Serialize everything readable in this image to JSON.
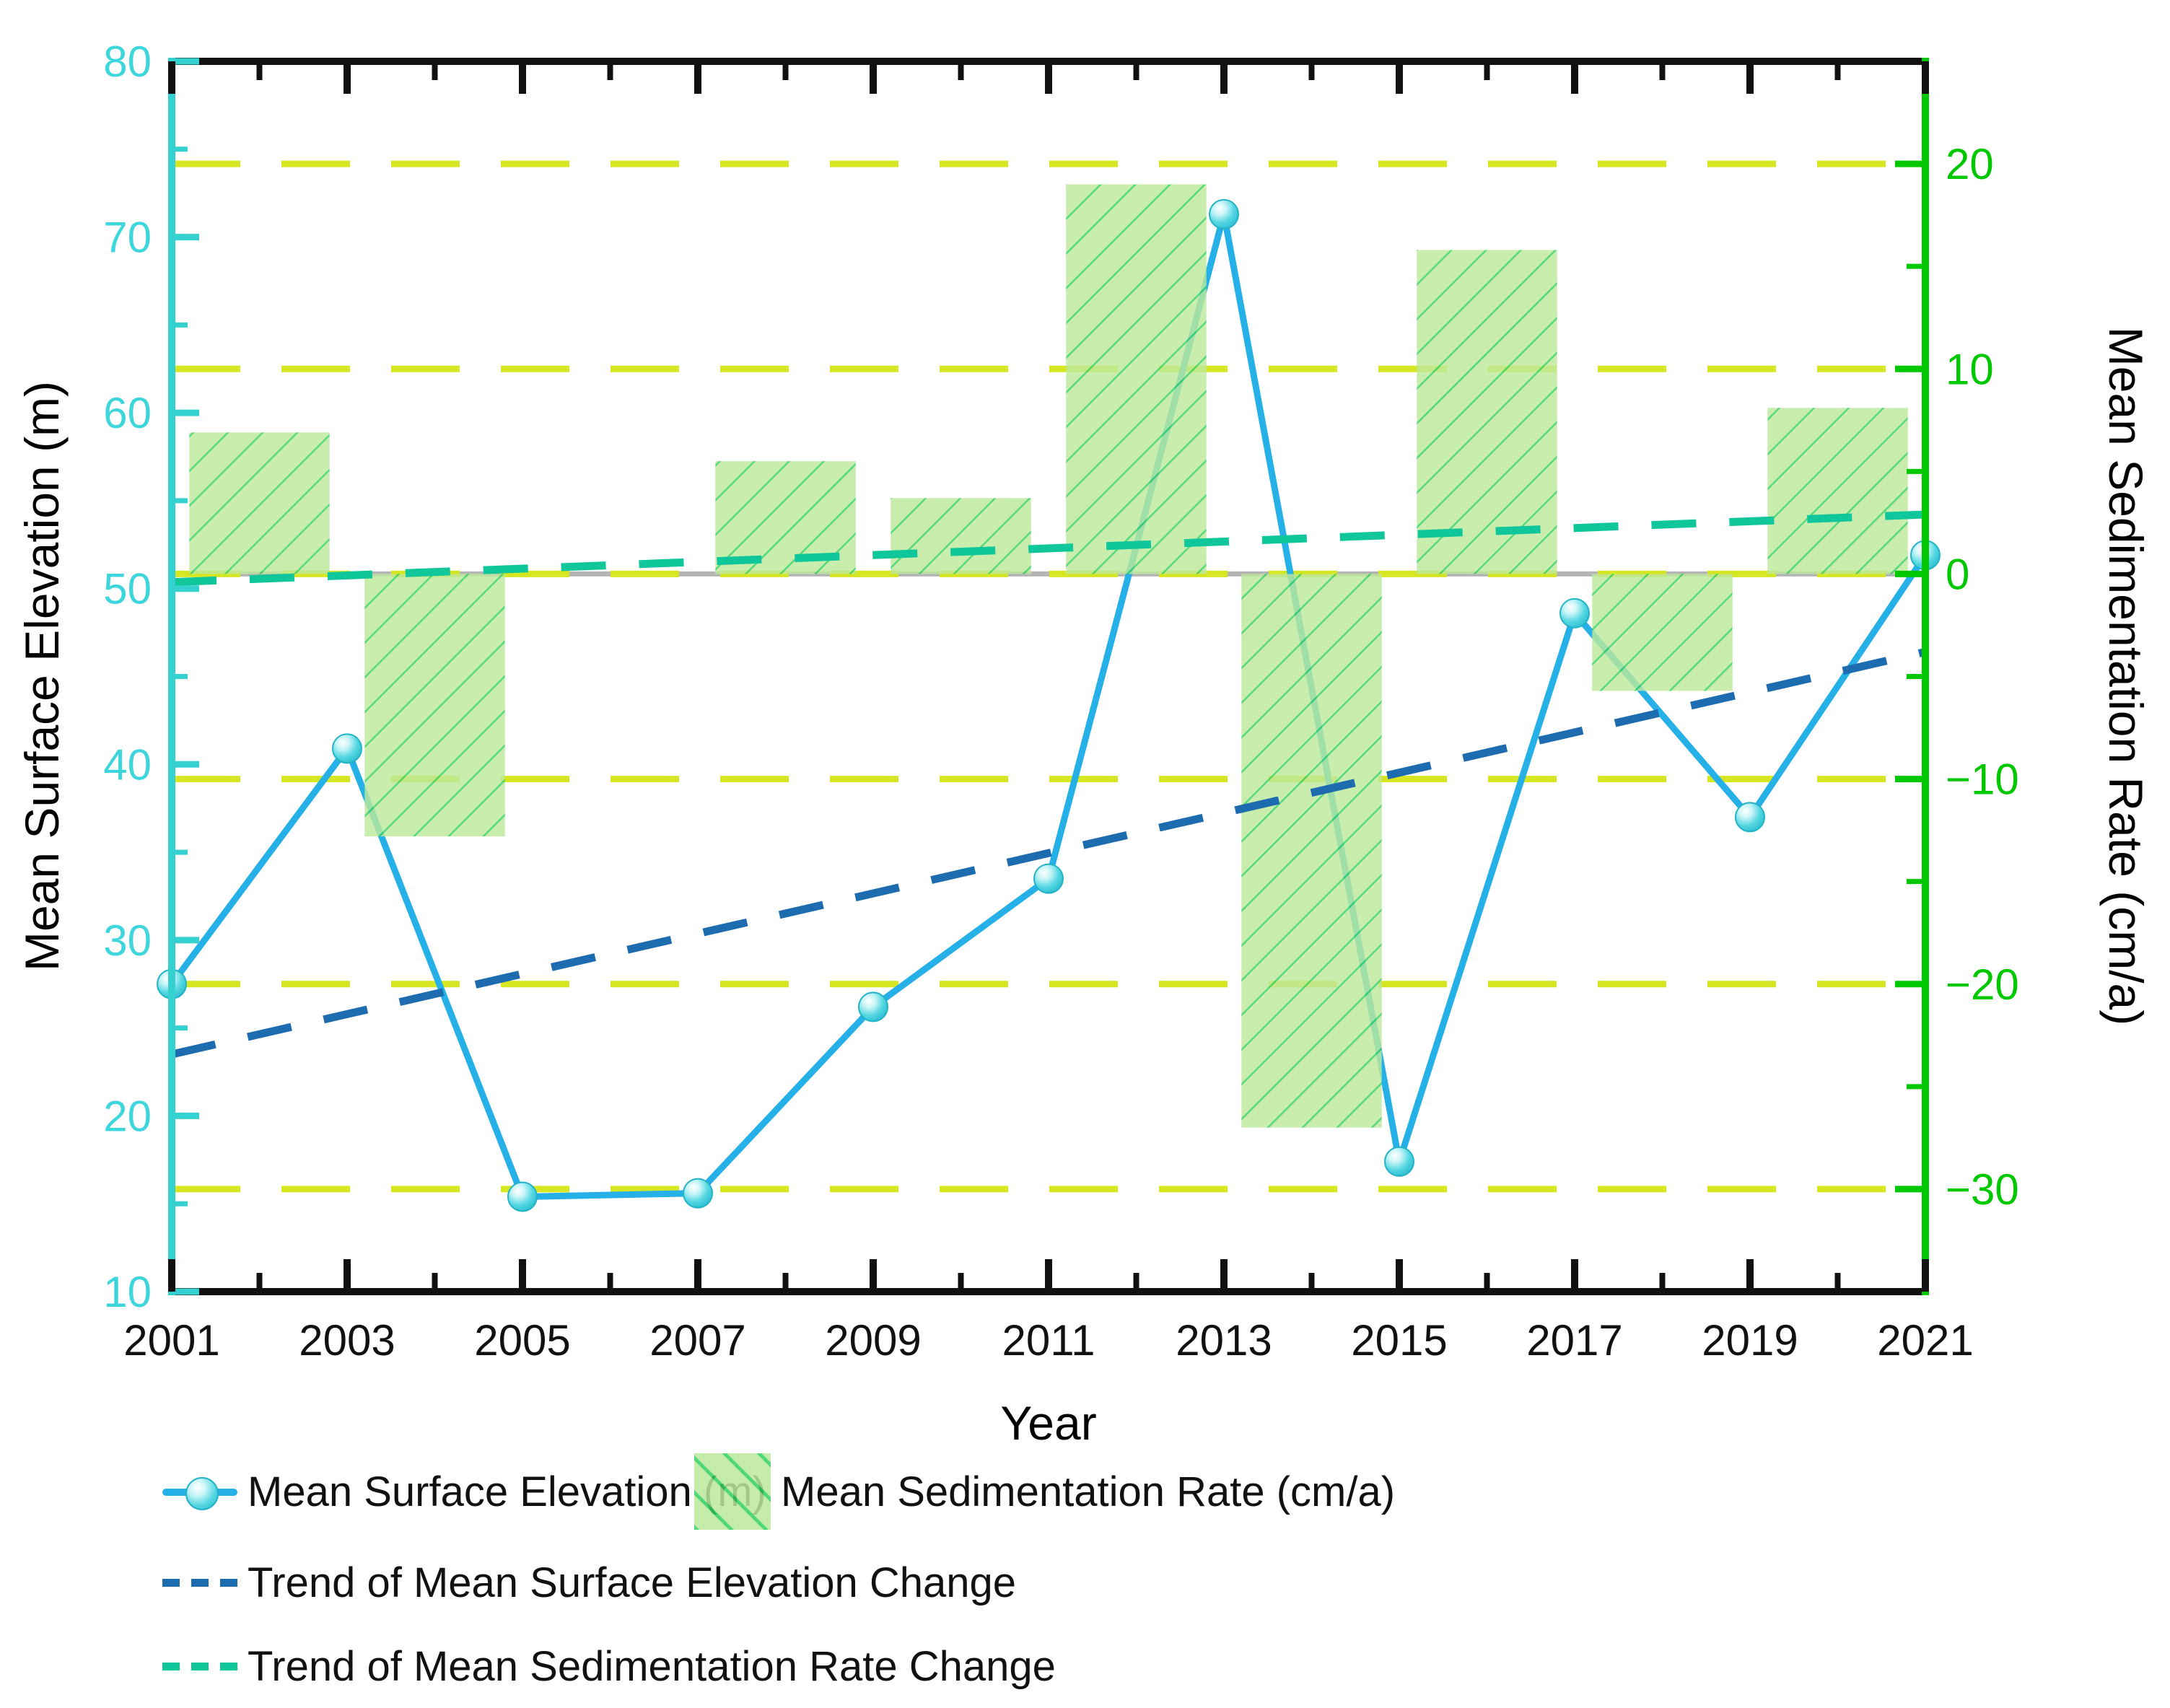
{
  "chart_data": {
    "type": "combo",
    "title": "",
    "x": {
      "label": "Year",
      "min": 2001,
      "max": 2021,
      "ticks": [
        2001,
        2003,
        2005,
        2007,
        2009,
        2011,
        2013,
        2015,
        2017,
        2019,
        2021
      ]
    },
    "y_left": {
      "label": "Mean Surface Elevation (m)",
      "min": 10,
      "max": 80,
      "ticks": [
        10,
        20,
        30,
        40,
        50,
        60,
        70,
        80
      ],
      "minor_ticks": [
        15,
        25,
        35,
        45,
        55,
        65,
        75
      ]
    },
    "y_right": {
      "label": "Mean Sedimentation Rate (cm/a)",
      "min": -35,
      "max": 25,
      "ticks": [
        -30,
        -20,
        -10,
        0,
        10,
        20
      ],
      "minor_ticks": [
        -25,
        -15,
        -5,
        5,
        15
      ]
    },
    "gridlines_right_values": [
      20,
      10,
      0,
      -10,
      -20,
      -30
    ],
    "baseline_right_value": 0,
    "series": [
      {
        "name": "Mean Surface Elevation (m)",
        "type": "line",
        "axis": "left",
        "x": [
          2001,
          2003,
          2005,
          2007,
          2009,
          2011,
          2013,
          2015,
          2017,
          2019,
          2021
        ],
        "values": [
          27.5,
          40.9,
          15.4,
          15.6,
          26.2,
          33.5,
          71.3,
          17.4,
          48.6,
          37.0,
          51.9
        ]
      },
      {
        "name": "Mean Sedimentation Rate (cm/a)",
        "type": "bar",
        "axis": "right",
        "bar_width_years": 1.6,
        "x": [
          2002,
          2004,
          2006,
          2008,
          2010,
          2012,
          2014,
          2016,
          2018,
          2020
        ],
        "values": [
          6.9,
          -12.8,
          0,
          5.5,
          3.7,
          19.0,
          -27.0,
          15.8,
          -5.7,
          8.1
        ]
      },
      {
        "name": "Trend of Mean Surface Elevation Change",
        "type": "trend",
        "axis": "left",
        "x": [
          2001,
          2021
        ],
        "values": [
          23.5,
          46.4
        ]
      },
      {
        "name": "Trend of Mean Sedimentation Rate Change",
        "type": "trend",
        "axis": "right",
        "x": [
          2001,
          2021
        ],
        "values": [
          -0.4,
          2.9
        ]
      }
    ],
    "legend": [
      {
        "label": "Mean Surface Elevation (m)",
        "swatch": "line-marker"
      },
      {
        "label": "Mean Sedimentation Rate (cm/a)",
        "swatch": "bar-patch"
      },
      {
        "label": "Trend of Mean Surface Elevation Change",
        "swatch": "blue-dash"
      },
      {
        "label": "Trend of Mean Sedimentation Rate Change",
        "swatch": "teal-dash"
      }
    ]
  },
  "colors": {
    "left_axis": "#35d0d0",
    "left_tick_label": "#3dd6dc",
    "right_axis": "#00c800",
    "frame_black": "#111111",
    "line": "#25b0e8",
    "marker_edge": "#23b3c6",
    "bar_fill": "#bce99b",
    "bar_hatch": "#35d063",
    "gridline_yellow": "#d6e621",
    "baseline_gray": "#b5b5b5",
    "trend_elevation": "#1e6cb0",
    "trend_sedimentation": "#0fc79b"
  }
}
